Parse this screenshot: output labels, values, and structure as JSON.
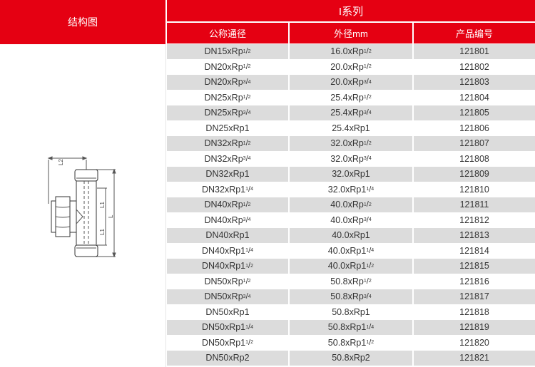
{
  "left_column": {
    "header": "结构图"
  },
  "series_title": "I系列",
  "columns": [
    "公称通径",
    "外径mm",
    "产品编号"
  ],
  "diagram": {
    "dim_labels": [
      "L2",
      "L1",
      "L1",
      "L"
    ]
  },
  "rows": [
    {
      "dn": [
        "DN15xRp",
        "1",
        "2"
      ],
      "od": [
        "16.0xRp",
        "1",
        "2"
      ],
      "code": "121801"
    },
    {
      "dn": [
        "DN20xRp",
        "1",
        "2"
      ],
      "od": [
        "20.0xRp",
        "1",
        "2"
      ],
      "code": "121802"
    },
    {
      "dn": [
        "DN20xRp",
        "3",
        "4"
      ],
      "od": [
        "20.0xRp",
        "3",
        "4"
      ],
      "code": "121803"
    },
    {
      "dn": [
        "DN25xRp",
        "1",
        "2"
      ],
      "od": [
        "25.4xRp",
        "1",
        "2"
      ],
      "code": "121804"
    },
    {
      "dn": [
        "DN25xRp",
        "3",
        "4"
      ],
      "od": [
        "25.4xRp",
        "3",
        "4"
      ],
      "code": "121805"
    },
    {
      "dn": [
        "DN25xRp1",
        "",
        ""
      ],
      "od": [
        "25.4xRp1",
        "",
        ""
      ],
      "code": "121806"
    },
    {
      "dn": [
        "DN32xRp",
        "1",
        "2"
      ],
      "od": [
        "32.0xRp",
        "1",
        "2"
      ],
      "code": "121807"
    },
    {
      "dn": [
        "DN32xRp",
        "3",
        "4"
      ],
      "od": [
        "32.0xRp",
        "3",
        "4"
      ],
      "code": "121808"
    },
    {
      "dn": [
        "DN32xRp1",
        "",
        ""
      ],
      "od": [
        "32.0xRp1",
        "",
        ""
      ],
      "code": "121809"
    },
    {
      "dn": [
        "DN32xRp1",
        "1",
        "4"
      ],
      "od": [
        "32.0xRp1",
        "1",
        "4"
      ],
      "code": "121810"
    },
    {
      "dn": [
        "DN40xRp",
        "1",
        "2"
      ],
      "od": [
        "40.0xRp",
        "1",
        "2"
      ],
      "code": "121811"
    },
    {
      "dn": [
        "DN40xRp",
        "3",
        "4"
      ],
      "od": [
        "40.0xRp",
        "3",
        "4"
      ],
      "code": "121812"
    },
    {
      "dn": [
        "DN40xRp1",
        "",
        ""
      ],
      "od": [
        "40.0xRp1",
        "",
        ""
      ],
      "code": "121813"
    },
    {
      "dn": [
        "DN40xRp1",
        "1",
        "4"
      ],
      "od": [
        "40.0xRp1",
        "1",
        "4"
      ],
      "code": "121814"
    },
    {
      "dn": [
        "DN40xRp1",
        "1",
        "2"
      ],
      "od": [
        "40.0xRp1",
        "1",
        "2"
      ],
      "code": "121815"
    },
    {
      "dn": [
        "DN50xRp",
        "1",
        "2"
      ],
      "od": [
        "50.8xRp",
        "1",
        "2"
      ],
      "code": "121816"
    },
    {
      "dn": [
        "DN50xRp",
        "3",
        "4"
      ],
      "od": [
        "50.8xRp",
        "3",
        "4"
      ],
      "code": "121817"
    },
    {
      "dn": [
        "DN50xRp1",
        "",
        ""
      ],
      "od": [
        "50.8xRp1",
        "",
        ""
      ],
      "code": "121818"
    },
    {
      "dn": [
        "DN50xRp1",
        "1",
        "4"
      ],
      "od": [
        "50.8xRp1",
        "1",
        "4"
      ],
      "code": "121819"
    },
    {
      "dn": [
        "DN50xRp1",
        "1",
        "2"
      ],
      "od": [
        "50.8xRp1",
        "1",
        "2"
      ],
      "code": "121820"
    },
    {
      "dn": [
        "DN50xRp2",
        "",
        ""
      ],
      "od": [
        "50.8xRp2",
        "",
        ""
      ],
      "code": "121821"
    }
  ]
}
